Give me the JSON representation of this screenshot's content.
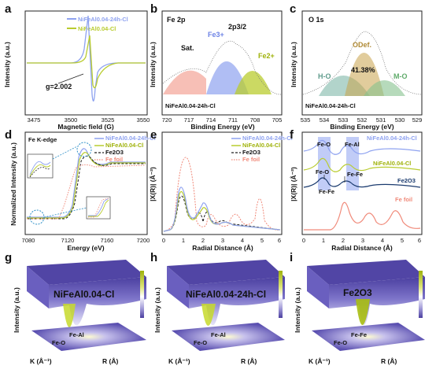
{
  "panels": {
    "a": {
      "letter": "a",
      "ylabel": "Intensity (a.u.)",
      "xlabel": "Magnetic field (G)",
      "ticks": [
        "3475",
        "3500",
        "3525",
        "3550"
      ],
      "legend": [
        "NiFeAl0.04-24h-Cl",
        "NiFeAl0.04-Cl"
      ],
      "annotation": "g=2.002",
      "colors": [
        "#8ea2f0",
        "#b9cc2f"
      ]
    },
    "b": {
      "letter": "b",
      "title": "Fe 2p",
      "ylabel": "Intensity (a.u.)",
      "xlabel": "Binding Energy (eV)",
      "ticks": [
        "720",
        "717",
        "714",
        "711",
        "708",
        "705"
      ],
      "peaks": [
        "Sat.",
        "Fe3+",
        "2p3/2",
        "Fe2+"
      ],
      "sample": "NiFeAl0.04-24h-Cl",
      "colors": [
        "#f08a7a",
        "#8ea2f0",
        "#b9cc2f"
      ]
    },
    "c": {
      "letter": "c",
      "title": "O 1s",
      "ylabel": "Intensity (a.u.)",
      "xlabel": "Binding Energy (eV)",
      "ticks": [
        "535",
        "534",
        "533",
        "532",
        "531",
        "530",
        "529"
      ],
      "peaks": [
        "H-O",
        "ODef.",
        "M-O"
      ],
      "percent": "41.38%",
      "sample": "NiFeAl0.04-24h-Cl",
      "colors": [
        "#7fb8a8",
        "#c9a24a",
        "#86c28e"
      ]
    },
    "d": {
      "letter": "d",
      "title": "Fe K-edge",
      "ylabel": "Normalized  Intensity (a.u.)",
      "xlabel": "Energy (eV)",
      "ticks": [
        "7080",
        "7120",
        "7160",
        "7200"
      ],
      "legend": [
        "NiFeAl0.04-24h-Cl",
        "NiFeAl0.04-Cl",
        "Fe2O3",
        "Fe foil"
      ]
    },
    "e": {
      "letter": "e",
      "ylabel": "|X(R)| (Å⁻³)",
      "xlabel": "Radial Distance  (Å)",
      "ticks": [
        "0",
        "1",
        "2",
        "3",
        "4",
        "5",
        "6"
      ],
      "legend": [
        "NiFeAl0.04-24h-Cl",
        "NiFeAl0.04-Cl",
        "Fe2O3",
        "Fe foil"
      ]
    },
    "f": {
      "letter": "f",
      "ylabel": "|X(R)| (Å⁻³)",
      "xlabel": "Radial Distance  (Å)",
      "ticks": [
        "0",
        "1",
        "2",
        "3",
        "4",
        "5",
        "6"
      ],
      "labels": [
        "Fe-O",
        "Fe-Al",
        "Fe-O",
        "Fe-Fe",
        "Fe-Fe"
      ],
      "series": [
        "NiFeAl0.04-24h-Cl",
        "NiFeAl0.04-Cl",
        "Fe2O3",
        "Fe foil"
      ]
    },
    "g": {
      "letter": "g",
      "sample": "NiFeAl0.04-Cl",
      "zlabel": "Intensity (a.u.)",
      "klabel": "K (Å⁻¹)",
      "rlabel": "R (Å)",
      "floor": [
        "Fe-Al",
        "Fe-O"
      ]
    },
    "h": {
      "letter": "h",
      "sample": "NiFeAl0.04-24h-Cl",
      "zlabel": "Intensity (a.u.)",
      "klabel": "K (Å⁻¹)",
      "rlabel": "R (Å)",
      "floor": [
        "Fe-Al",
        "Fe-O"
      ]
    },
    "i": {
      "letter": "i",
      "sample": "Fe2O3",
      "zlabel": "Intensity (a.u.)",
      "klabel": "K (Å⁻¹)",
      "rlabel": "R (Å)",
      "floor": [
        "Fe-Fe",
        "Fe-O"
      ]
    }
  }
}
